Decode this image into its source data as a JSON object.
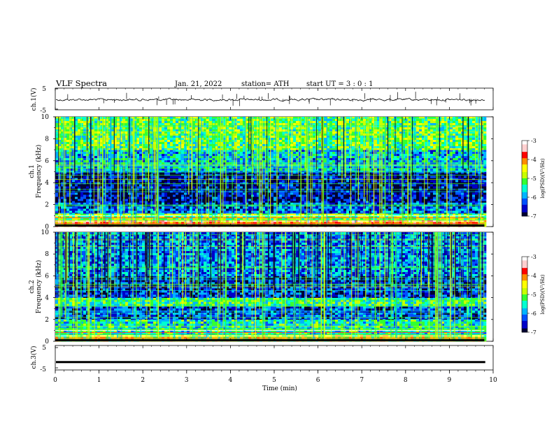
{
  "header": {
    "title": "VLF  Spectra",
    "date": "Jan. 21, 2022",
    "station": "station= ATH",
    "start": "start  UT  =    3  : 0  : 1"
  },
  "chart_data": [
    {
      "type": "line",
      "name": "ch.1 waveform",
      "ylabel": "ch.1(V)",
      "ylim": [
        -5,
        5
      ],
      "yticks": [
        "5",
        "-5"
      ],
      "xlim": [
        0,
        10
      ],
      "description_level": 0,
      "samples": [
        -0.3,
        0.4,
        -0.2,
        0.1,
        -0.5,
        0.3,
        0.6,
        -0.4,
        0.2,
        -0.1,
        0.5,
        -0.6,
        0.2,
        0.3,
        -0.2,
        0.1,
        -0.4,
        0.5,
        -0.3,
        0.2
      ]
    },
    {
      "type": "heatmap",
      "name": "ch.1 spectrogram",
      "ylabel_1": "ch.1",
      "ylabel_2": "Frequency (kHz)",
      "yrange": [
        0,
        10
      ],
      "yticks": [
        "10",
        "8",
        "6",
        "4",
        "2",
        "0"
      ],
      "xlim": [
        0,
        9.8
      ],
      "bands_khz": [
        {
          "from": 0,
          "to": 0.6,
          "level": -3.8
        },
        {
          "from": 0.6,
          "to": 1.2,
          "level": -4.8
        },
        {
          "from": 1.2,
          "to": 2.2,
          "level": -6.2
        },
        {
          "from": 2.2,
          "to": 5.0,
          "level": -6.7
        },
        {
          "from": 5.0,
          "to": 7.0,
          "level": -5.7
        },
        {
          "from": 7.0,
          "to": 10.0,
          "level": -5.0
        }
      ],
      "colorbar": {
        "label": "log(PSD)(V²/Hz)",
        "range": [
          -7,
          -3
        ],
        "ticks": [
          "-3",
          "-4",
          "-5",
          "-6",
          "-7"
        ]
      }
    },
    {
      "type": "heatmap",
      "name": "ch.2 spectrogram",
      "ylabel_1": "ch.2",
      "ylabel_2": "Frequency (kHz)",
      "yrange": [
        0,
        10
      ],
      "yticks": [
        "10",
        "8",
        "6",
        "4",
        "2",
        "0"
      ],
      "xlim": [
        0,
        9.8
      ],
      "bands_khz": [
        {
          "from": 0,
          "to": 0.6,
          "level": -4.6
        },
        {
          "from": 0.6,
          "to": 2.0,
          "level": -5.4
        },
        {
          "from": 2.0,
          "to": 3.2,
          "level": -6.3
        },
        {
          "from": 3.2,
          "to": 4.0,
          "level": -5.2
        },
        {
          "from": 4.0,
          "to": 6.0,
          "level": -6.4
        },
        {
          "from": 6.0,
          "to": 10.0,
          "level": -6.0
        }
      ],
      "colorbar": {
        "label": "log(PSD)(V²/Hz)",
        "range": [
          -7,
          -3
        ],
        "ticks": [
          "-3",
          "-4",
          "-5",
          "-6",
          "-7"
        ]
      }
    },
    {
      "type": "line",
      "name": "ch.3 waveform",
      "ylabel": "ch.3(V)",
      "ylim": [
        -5,
        5
      ],
      "yticks": [
        "5",
        "-5"
      ],
      "xlim": [
        0,
        10
      ],
      "description_level": -1.8
    }
  ],
  "xaxis": {
    "label": "Time  (min)",
    "range": [
      0,
      10
    ],
    "ticks": [
      "0",
      "1",
      "2",
      "3",
      "4",
      "5",
      "6",
      "7",
      "8",
      "9",
      "10"
    ]
  },
  "colors": {
    "palette": [
      "#000033",
      "#0000c8",
      "#0050ff",
      "#00b4ff",
      "#00ffd2",
      "#32ff32",
      "#c8ff00",
      "#ffff00",
      "#ff8c00",
      "#ff0000",
      "#ffd0d0",
      "#ffffff"
    ],
    "line": "#000000"
  }
}
